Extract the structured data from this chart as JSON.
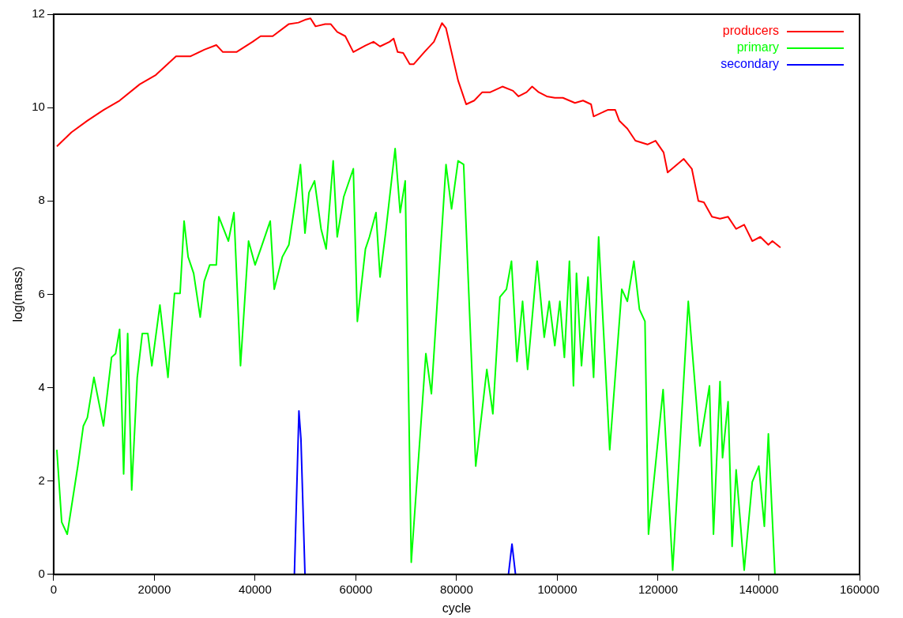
{
  "chart_data": {
    "type": "line",
    "xlabel": "cycle",
    "ylabel": "log(mass)",
    "xlim": [
      0,
      160000
    ],
    "xticks": [
      0,
      20000,
      40000,
      60000,
      80000,
      100000,
      120000,
      140000,
      160000
    ],
    "ylim": [
      0,
      12
    ],
    "yticks": [
      0,
      2,
      4,
      6,
      8,
      10,
      12
    ],
    "grid": false,
    "legend": "top right",
    "marker": "none",
    "line_style": "solid",
    "series": [
      {
        "name": "producers",
        "color": "#ff0000",
        "x": [
          640,
          3520,
          6720,
          9920,
          13100,
          17100,
          20300,
          24300,
          27200,
          29900,
          32300,
          33600,
          36300,
          39500,
          41100,
          43500,
          46700,
          48600,
          49900,
          51000,
          52000,
          53900,
          55000,
          56300,
          57900,
          59500,
          61900,
          63500,
          64800,
          66700,
          67500,
          68300,
          69400,
          70700,
          71500,
          73600,
          75500,
          77100,
          77900,
          80300,
          81900,
          83500,
          85100,
          86700,
          89100,
          91200,
          92300,
          93900,
          95000,
          96300,
          97900,
          99500,
          101100,
          103500,
          105100,
          106700,
          107200,
          110000,
          111500,
          112300,
          113900,
          115500,
          117900,
          119500,
          121100,
          121900,
          125100,
          126700,
          128000,
          129100,
          130700,
          132300,
          133900,
          135500,
          137100,
          138700,
          140300,
          141900,
          142700,
          144300
        ],
        "values": [
          9.17,
          9.47,
          9.72,
          9.95,
          10.15,
          10.5,
          10.7,
          11.1,
          11.1,
          11.24,
          11.34,
          11.19,
          11.19,
          11.41,
          11.53,
          11.53,
          11.79,
          11.82,
          11.88,
          11.91,
          11.74,
          11.79,
          11.79,
          11.62,
          11.53,
          11.19,
          11.33,
          11.41,
          11.31,
          11.41,
          11.48,
          11.19,
          11.17,
          10.93,
          10.93,
          11.19,
          11.41,
          11.81,
          11.7,
          10.58,
          10.07,
          10.15,
          10.33,
          10.33,
          10.45,
          10.36,
          10.24,
          10.33,
          10.45,
          10.33,
          10.24,
          10.21,
          10.21,
          10.1,
          10.15,
          10.07,
          9.81,
          9.95,
          9.95,
          9.72,
          9.55,
          9.29,
          9.21,
          9.29,
          9.04,
          8.61,
          8.9,
          8.69,
          8.0,
          7.97,
          7.66,
          7.62,
          7.66,
          7.4,
          7.49,
          7.14,
          7.23,
          7.06,
          7.14,
          7.0
        ]
      },
      {
        "name": "primary",
        "color": "#00ff00",
        "x": [
          640,
          1600,
          2700,
          4800,
          5900,
          6700,
          8000,
          9900,
          11500,
          12300,
          13100,
          13900,
          14700,
          15500,
          16600,
          17600,
          18700,
          19500,
          21100,
          22700,
          24000,
          25100,
          25900,
          26700,
          27800,
          29100,
          29900,
          31000,
          32300,
          32800,
          34700,
          35800,
          37100,
          38700,
          40000,
          41100,
          43000,
          43800,
          45400,
          46700,
          48000,
          49000,
          49900,
          50700,
          51800,
          53100,
          54100,
          55500,
          56300,
          57600,
          59500,
          60300,
          61900,
          62700,
          64000,
          64800,
          65900,
          67800,
          68800,
          69800,
          71000,
          73900,
          75000,
          77900,
          79000,
          80300,
          81400,
          83800,
          86000,
          87200,
          88600,
          89900,
          90900,
          92000,
          93100,
          94100,
          96000,
          97400,
          98400,
          99500,
          100500,
          101400,
          102400,
          103200,
          103800,
          104800,
          106100,
          107200,
          108200,
          110400,
          112800,
          113900,
          115200,
          116300,
          117400,
          118100,
          121000,
          122900,
          126000,
          128300,
          130200,
          131000,
          132300,
          132800,
          133900,
          134700,
          135500,
          137100,
          138700,
          140000,
          141100,
          141900,
          143200
        ],
        "values": [
          2.67,
          1.12,
          0.86,
          2.32,
          3.18,
          3.36,
          4.22,
          3.18,
          4.65,
          4.73,
          5.25,
          2.15,
          5.16,
          1.81,
          4.22,
          5.16,
          5.16,
          4.47,
          5.77,
          4.22,
          6.02,
          6.02,
          7.57,
          6.8,
          6.45,
          5.51,
          6.28,
          6.63,
          6.63,
          7.66,
          7.14,
          7.75,
          4.47,
          7.14,
          6.63,
          6.97,
          7.57,
          6.11,
          6.8,
          7.06,
          8.0,
          8.78,
          7.31,
          8.18,
          8.43,
          7.4,
          6.97,
          8.86,
          7.23,
          8.09,
          8.69,
          5.42,
          6.97,
          7.23,
          7.75,
          6.37,
          7.31,
          9.12,
          7.75,
          8.43,
          0.26,
          4.73,
          3.87,
          8.78,
          7.83,
          8.86,
          8.78,
          2.32,
          4.39,
          3.44,
          5.94,
          6.11,
          6.71,
          4.56,
          5.85,
          4.39,
          6.71,
          5.08,
          5.85,
          4.9,
          5.85,
          4.65,
          6.71,
          4.04,
          6.45,
          4.47,
          6.37,
          4.22,
          7.23,
          2.67,
          6.11,
          5.85,
          6.71,
          5.68,
          5.42,
          0.86,
          3.96,
          0.09,
          5.85,
          2.75,
          4.04,
          0.86,
          4.13,
          2.5,
          3.7,
          0.6,
          2.24,
          0.09,
          1.98,
          2.32,
          1.03,
          3.01,
          0
        ]
      },
      {
        "name": "secondary",
        "color": "#0000ff",
        "x": [
          47800,
          48700,
          49100,
          49900,
          70000,
          90300,
          91000,
          91700
        ],
        "values": [
          0,
          3.5,
          2.9,
          0,
          null,
          0,
          0.65,
          0
        ]
      }
    ]
  }
}
